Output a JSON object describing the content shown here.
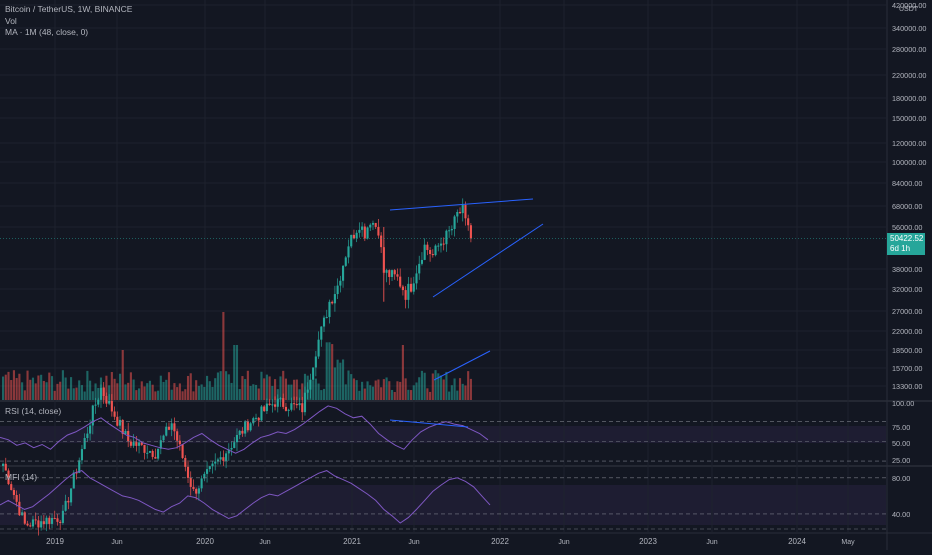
{
  "header": {
    "symbol_line": "Bitcoin / TetherUS, 1W, BINANCE",
    "vol_label": "Vol",
    "ma_label": "MA · 1M (48, close, 0)"
  },
  "rsi": {
    "label": "RSI (14, close)",
    "ticks": [
      "100.00",
      "75.00",
      "50.00",
      "25.00"
    ]
  },
  "mfi": {
    "label": "MFI (14)",
    "ticks": [
      "80.00",
      "40.00"
    ]
  },
  "price_axis": {
    "currency": "USDT",
    "ticks": [
      "420000.00",
      "340000.00",
      "280000.00",
      "220000.00",
      "180000.00",
      "150000.00",
      "120000.00",
      "100000.00",
      "84000.00",
      "68000.00",
      "56000.00",
      "38000.00",
      "32000.00",
      "27000.00",
      "22000.00",
      "18500.00",
      "15700.00",
      "13300.00"
    ]
  },
  "last_price": {
    "value": "50422.52",
    "countdown": "6d 1h"
  },
  "time_axis": [
    "2019",
    "Jun",
    "2020",
    "Jun",
    "2021",
    "Jun",
    "2022",
    "Jun",
    "2023",
    "Jun",
    "2024",
    "May"
  ],
  "colors": {
    "background": "#131722",
    "up": "#26a69a",
    "down": "#ef5350",
    "trendline": "#2962ff",
    "oscillator": "#7e57c2",
    "text": "#b2b5be"
  },
  "chart_data": {
    "type": "candlestick",
    "title": "Bitcoin / TetherUS, 1W, BINANCE",
    "scale": "log",
    "ylim": [
      11500,
      430000
    ],
    "series": [
      {
        "name": "price",
        "x_start": "2018-10",
        "x_end": "2021-12",
        "anchors": [
          [
            0,
            6500
          ],
          [
            8,
            3700
          ],
          [
            22,
            4000
          ],
          [
            33,
            10500
          ],
          [
            36,
            13000
          ],
          [
            46,
            8000
          ],
          [
            56,
            7200
          ],
          [
            62,
            9500
          ],
          [
            70,
            5000
          ],
          [
            90,
            9400
          ],
          [
            100,
            11500
          ],
          [
            110,
            10800
          ],
          [
            115,
            18500
          ],
          [
            120,
            29000
          ],
          [
            123,
            33000
          ],
          [
            127,
            48000
          ],
          [
            131,
            58000
          ],
          [
            133,
            53000
          ],
          [
            135,
            60000
          ],
          [
            138,
            55000
          ],
          [
            140,
            37000
          ],
          [
            145,
            35000
          ],
          [
            148,
            31000
          ],
          [
            150,
            33000
          ],
          [
            155,
            47000
          ],
          [
            158,
            43000
          ],
          [
            160,
            47000
          ],
          [
            165,
            55000
          ],
          [
            167,
            63000
          ],
          [
            169,
            65000
          ],
          [
            170,
            58000
          ],
          [
            171,
            57500
          ],
          [
            172,
            50422
          ]
        ]
      },
      {
        "name": "RSI (14, close)",
        "ylim": [
          20,
          100
        ],
        "levels": [
          75,
          50,
          25
        ],
        "values": [
          55,
          52,
          45,
          48,
          42,
          46,
          40,
          50,
          58,
          62,
          68,
          75,
          80,
          72,
          65,
          58,
          55,
          48,
          45,
          42,
          40,
          42,
          48,
          55,
          60,
          52,
          45,
          40,
          35,
          40,
          48,
          55,
          58,
          62,
          60,
          65,
          72,
          80,
          88,
          95,
          92,
          85,
          80,
          82,
          72,
          60,
          52,
          45,
          40,
          52,
          62,
          68,
          72,
          75,
          72,
          70,
          65,
          60,
          52
        ]
      },
      {
        "name": "MFI (14)",
        "ylim": [
          20,
          92
        ],
        "levels": [
          80,
          40
        ],
        "values": [
          50,
          55,
          50,
          45,
          48,
          55,
          62,
          70,
          78,
          85,
          88,
          80,
          75,
          70,
          65,
          60,
          58,
          55,
          50,
          45,
          42,
          48,
          52,
          60,
          58,
          52,
          45,
          40,
          35,
          38,
          45,
          52,
          58,
          62,
          60,
          65,
          70,
          75,
          80,
          85,
          88,
          82,
          78,
          74,
          68,
          62,
          55,
          45,
          38,
          30,
          36,
          45,
          55,
          65,
          72,
          78,
          80,
          76,
          70,
          60,
          50
        ]
      }
    ],
    "trendlines": [
      {
        "name": "upper",
        "from": [
          "2021-04",
          64000
        ],
        "to": [
          "2021-12",
          73000
        ]
      },
      {
        "name": "lower",
        "from": [
          "2021-07",
          30000
        ],
        "to": [
          "2022-02",
          59000
        ]
      }
    ]
  }
}
